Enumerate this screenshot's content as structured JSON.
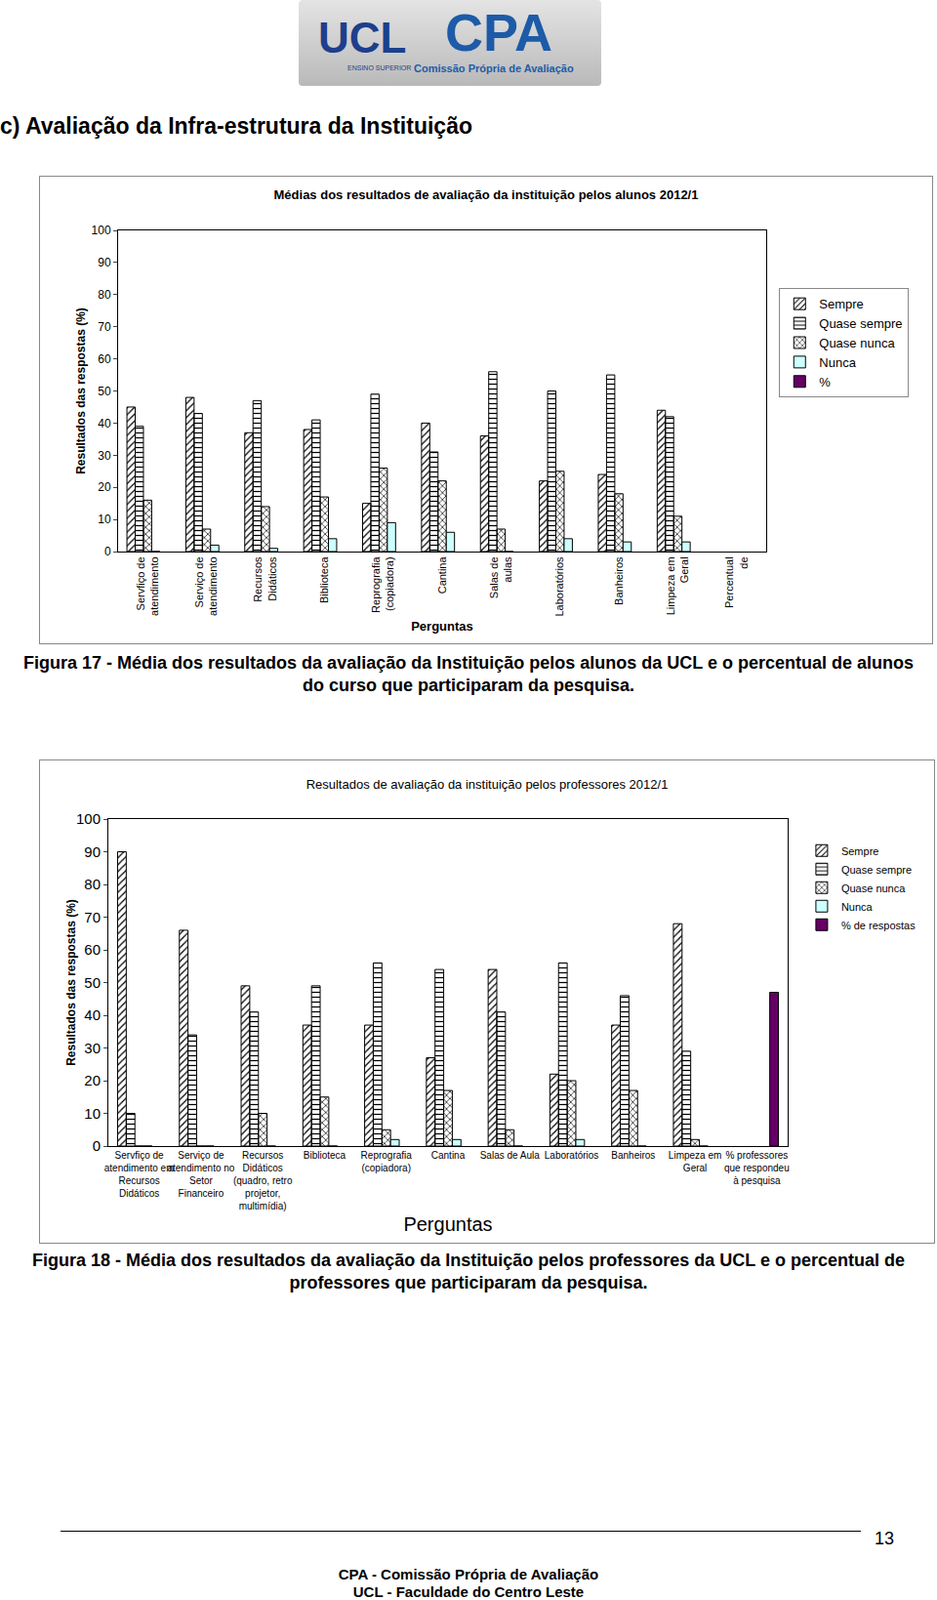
{
  "header": {
    "logo_left": "UCL",
    "logo_left_sub": "ENSINO SUPERIOR",
    "logo_right": "CPA",
    "logo_right_sub": "Comissão Própria de Avaliação"
  },
  "heading": "c) Avaliação da Infra-estrutura da Instituição",
  "chart_data": [
    {
      "type": "bar",
      "title": "Médias dos resultados de avaliação da instituição pelos alunos 2012/1",
      "x_label": "Perguntas",
      "y_label": "Resultados das respostas (%)",
      "categories": [
        "Servfiço de atendimento",
        "Serviço de atendimento",
        "Recursos Didáticos",
        "Biblioteca",
        "Reprografia (copiadora)",
        "Cantina",
        "Salas de aulas",
        "Laboratórios",
        "Banheiros",
        "Limpeza em Geral",
        "Percentual de"
      ],
      "series": [
        {
          "name": "Sempre",
          "color": "#ffffff",
          "values": [
            45,
            48,
            37,
            38,
            15,
            40,
            36,
            22,
            24,
            44,
            null
          ]
        },
        {
          "name": "Quase sempre",
          "color": "#ffffff",
          "values": [
            39,
            43,
            47,
            41,
            49,
            31,
            56,
            50,
            55,
            42,
            null
          ]
        },
        {
          "name": "Quase nunca",
          "color": "#ffffcc",
          "values": [
            16,
            7,
            14,
            17,
            26,
            22,
            7,
            25,
            18,
            11,
            null
          ]
        },
        {
          "name": "Nunca",
          "color": "#ccffff",
          "values": [
            0,
            2,
            1,
            4,
            9,
            6,
            0,
            4,
            3,
            3,
            null
          ]
        },
        {
          "name": "%",
          "color": "#660066",
          "values": [
            null,
            null,
            null,
            null,
            null,
            null,
            null,
            null,
            null,
            null,
            null
          ]
        }
      ],
      "ylim": [
        0,
        100
      ],
      "yticks": [
        0,
        10,
        20,
        30,
        40,
        50,
        60,
        70,
        80,
        90,
        100
      ],
      "grid": false,
      "legend": "right",
      "caption": "Figura 17 - Média dos resultados da avaliação da Instituição pelos alunos da UCL e o percentual de alunos do curso que participaram da pesquisa."
    },
    {
      "type": "bar",
      "title": "Resultados de avaliação da instituição pelos professores 2012/1",
      "x_label": "Perguntas",
      "y_label": "Resultados das respostas (%)",
      "categories": [
        "Servfiço de atendimento em Recursos Didáticos",
        "Serviço de atendimento no Setor Financeiro",
        "Recursos Didáticos (quadro, retro projetor, multimídia)",
        "Biblioteca",
        "Reprografia (copiadora)",
        "Cantina",
        "Salas de Aula",
        "Laboratórios",
        "Banheiros",
        "Limpeza em Geral",
        "% professores que respondeu à pesquisa"
      ],
      "series": [
        {
          "name": "Sempre",
          "color": "#ffffff",
          "values": [
            90,
            66,
            49,
            37,
            37,
            27,
            54,
            22,
            37,
            68,
            null
          ]
        },
        {
          "name": "Quase sempre",
          "color": "#ffffff",
          "values": [
            10,
            34,
            41,
            49,
            56,
            54,
            41,
            56,
            46,
            29,
            null
          ]
        },
        {
          "name": "Quase nunca",
          "color": "#ffffcc",
          "values": [
            0,
            0,
            10,
            15,
            5,
            17,
            5,
            20,
            17,
            2,
            null
          ]
        },
        {
          "name": "Nunca",
          "color": "#ccffff",
          "values": [
            0,
            0,
            0,
            0,
            2,
            2,
            0,
            2,
            0,
            0,
            null
          ]
        },
        {
          "name": "% de respostas",
          "color": "#660066",
          "values": [
            null,
            null,
            null,
            null,
            null,
            null,
            null,
            null,
            null,
            null,
            47
          ]
        }
      ],
      "ylim": [
        0,
        100
      ],
      "yticks": [
        0,
        10,
        20,
        30,
        40,
        50,
        60,
        70,
        80,
        90,
        100
      ],
      "grid": false,
      "legend": "right",
      "caption": "Figura 18 - Média dos resultados da avaliação da Instituição pelos professores da UCL e o percentual de professores que participaram da pesquisa."
    }
  ],
  "page_number": "13",
  "footer": [
    "CPA - Comissão Própria de Avaliação",
    "UCL - Faculdade do Centro Leste"
  ]
}
